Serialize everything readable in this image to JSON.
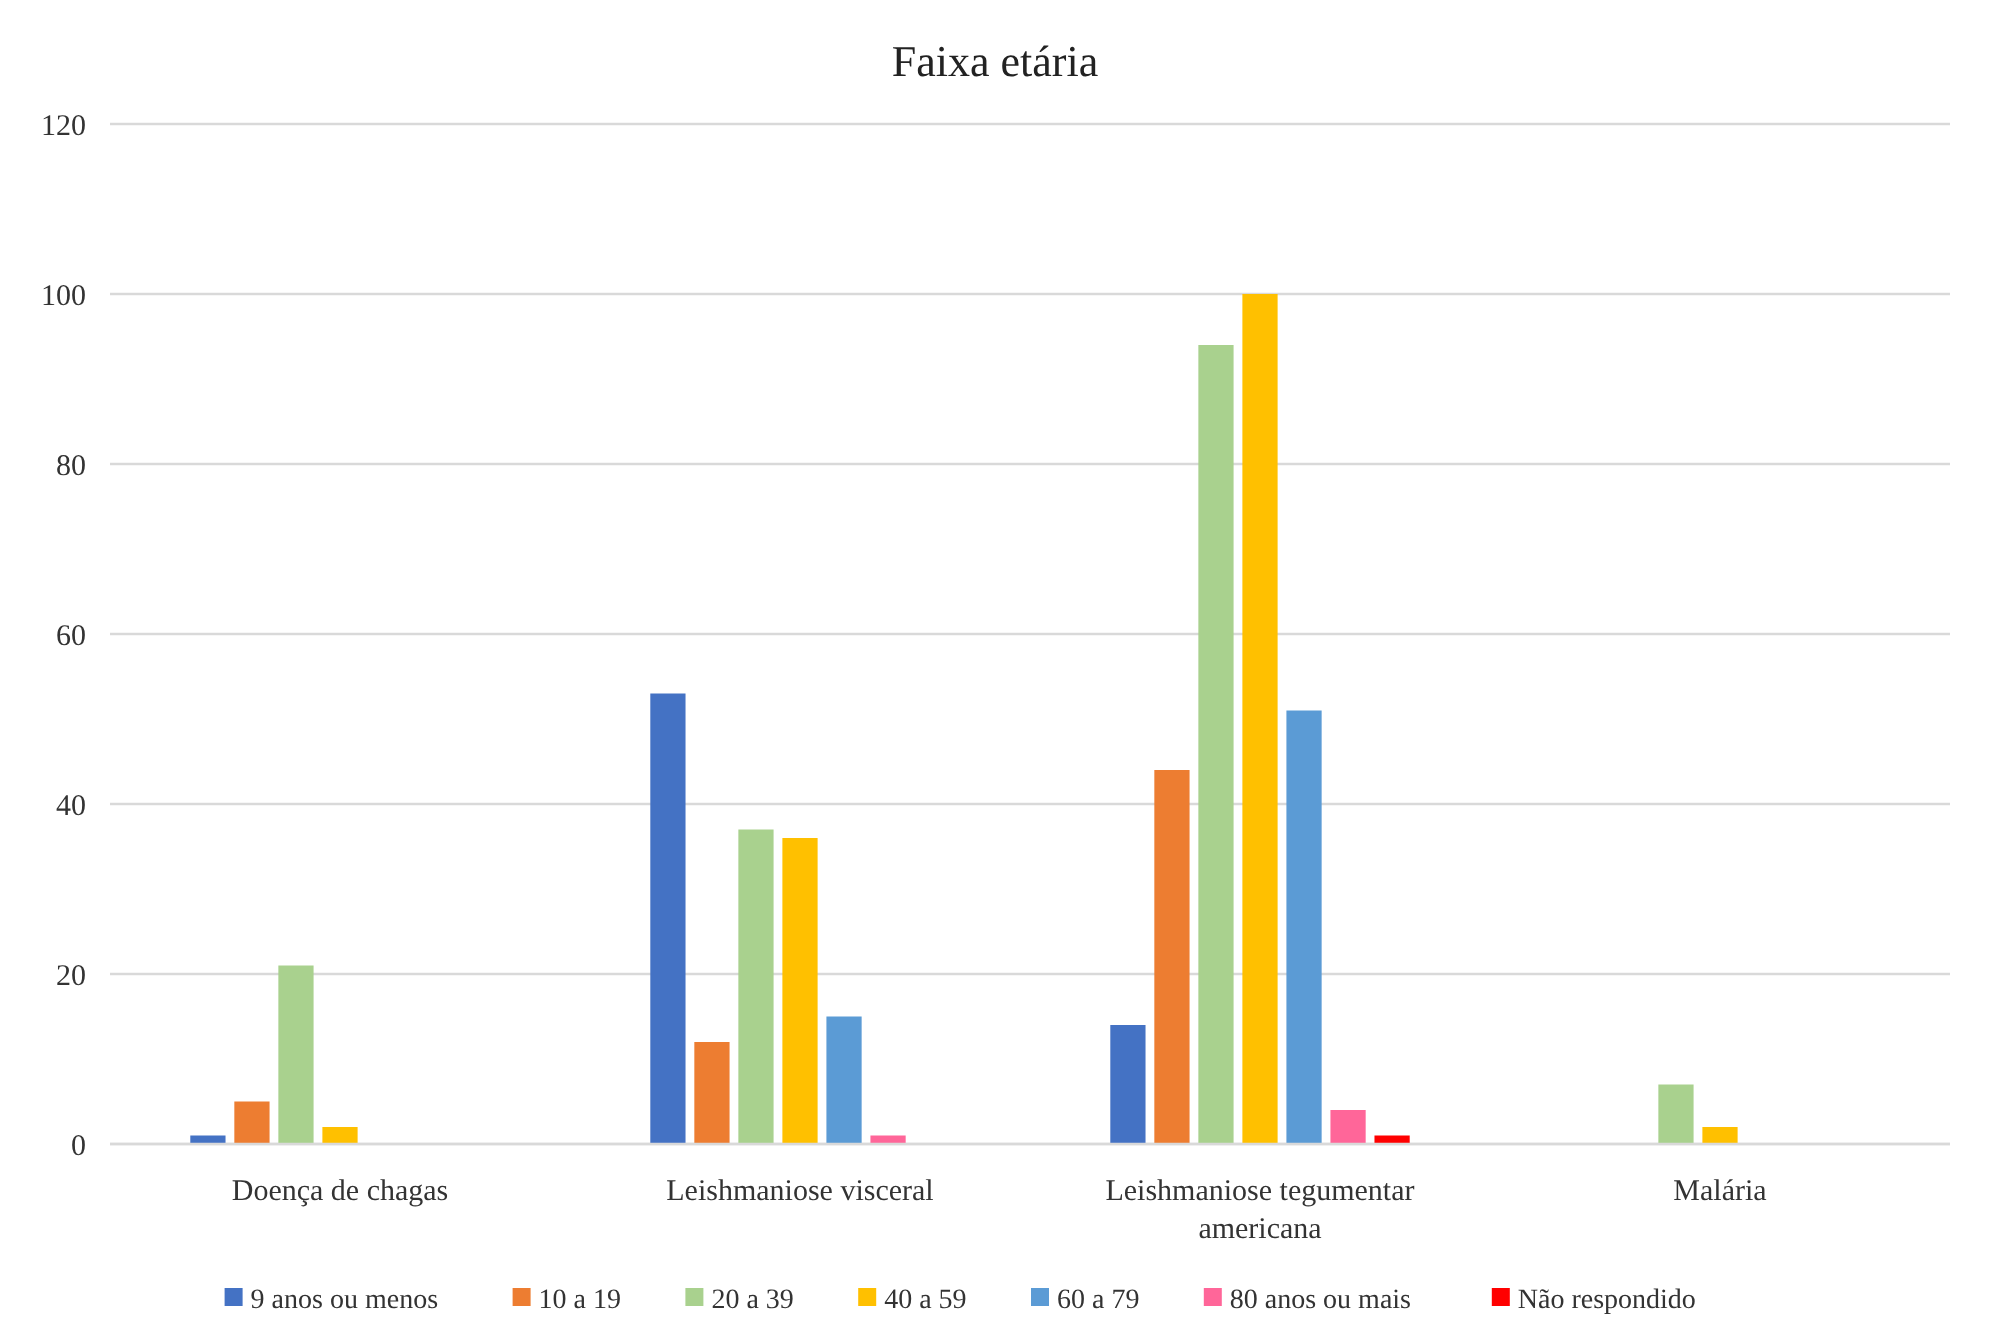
{
  "chart_data": {
    "type": "bar",
    "title": "Faixa etária",
    "categories": [
      "Doença de chagas",
      "Leishmaniose visceral",
      "Leishmaniose tegumentar americana",
      "Malária"
    ],
    "series": [
      {
        "name": "9 anos ou menos",
        "color": "#4472c4",
        "values": [
          1,
          53,
          14,
          0
        ]
      },
      {
        "name": "10 a 19",
        "color": "#ed7d31",
        "values": [
          5,
          12,
          44,
          0
        ]
      },
      {
        "name": "20 a 39",
        "color": "#a9d18e",
        "values": [
          21,
          37,
          94,
          7
        ]
      },
      {
        "name": "40 a 59",
        "color": "#ffc000",
        "values": [
          2,
          36,
          100,
          2
        ]
      },
      {
        "name": "60 a 79",
        "color": "#5b9bd5",
        "values": [
          0,
          15,
          51,
          0
        ]
      },
      {
        "name": "80 anos ou mais",
        "color": "#ff6699",
        "values": [
          0,
          1,
          4,
          0
        ]
      },
      {
        "name": "Não respondido",
        "color": "#ff0000",
        "values": [
          0,
          0,
          1,
          0
        ]
      }
    ],
    "ylim": [
      0,
      120
    ],
    "yticks": [
      0,
      20,
      40,
      60,
      80,
      100,
      120
    ],
    "grid": "y",
    "legend": "bottom"
  }
}
